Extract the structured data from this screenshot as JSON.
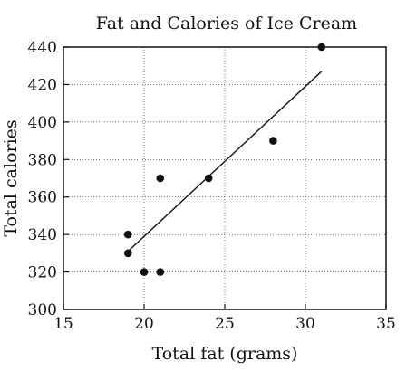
{
  "chart_data": {
    "type": "scatter",
    "title": "Fat and Calories of Ice Cream",
    "xlabel": "Total fat (grams)",
    "ylabel": "Total calories",
    "xlim": [
      15,
      35
    ],
    "ylim": [
      300,
      440
    ],
    "xticks": [
      15,
      20,
      25,
      30,
      35
    ],
    "yticks": [
      300,
      320,
      340,
      360,
      380,
      400,
      420,
      440
    ],
    "grid": true,
    "points": [
      {
        "x": 19,
        "y": 340
      },
      {
        "x": 19,
        "y": 330
      },
      {
        "x": 20,
        "y": 320
      },
      {
        "x": 21,
        "y": 320
      },
      {
        "x": 21,
        "y": 370
      },
      {
        "x": 24,
        "y": 370
      },
      {
        "x": 28,
        "y": 390
      },
      {
        "x": 31,
        "y": 440
      }
    ],
    "trend_line": {
      "x": [
        19,
        31
      ],
      "y": [
        331,
        427
      ]
    }
  }
}
